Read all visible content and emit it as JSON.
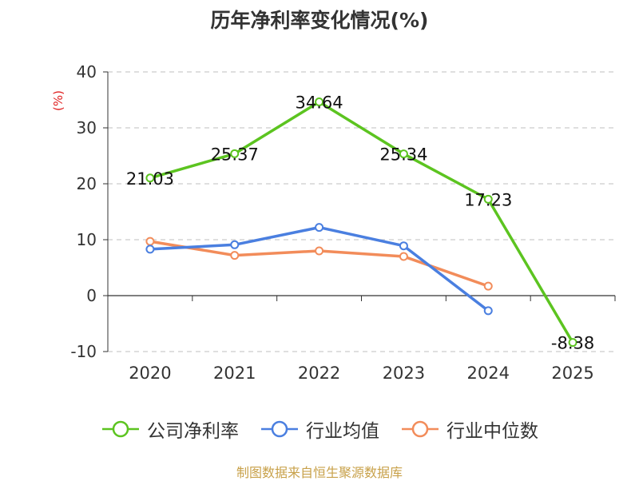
{
  "source": "制图数据来自恒生聚源数据库",
  "chart_data": {
    "type": "line",
    "title": "历年净利率变化情况(%)",
    "ylabel": "(%)",
    "xlabel": "",
    "categories": [
      "2020",
      "2021",
      "2022",
      "2023",
      "2024",
      "2025"
    ],
    "ylim": [
      -10,
      40
    ],
    "yticks": [
      -10,
      0,
      10,
      20,
      30,
      40
    ],
    "grid": true,
    "legend_position": "bottom",
    "series": [
      {
        "name": "公司净利率",
        "color": "#5cc420",
        "values": [
          21.03,
          25.37,
          34.64,
          25.34,
          17.23,
          -8.38
        ],
        "show_labels": true
      },
      {
        "name": "行业均值",
        "color": "#4a7fe0",
        "values": [
          8.3,
          9.1,
          12.2,
          8.9,
          -2.7,
          null
        ],
        "show_labels": false
      },
      {
        "name": "行业中位数",
        "color": "#f28c5a",
        "values": [
          9.7,
          7.2,
          8.0,
          7.0,
          1.7,
          null
        ],
        "show_labels": false
      }
    ],
    "data_labels": [
      "21.03",
      "25.37",
      "34.64",
      "25.34",
      "17.23",
      "-8.38"
    ]
  }
}
